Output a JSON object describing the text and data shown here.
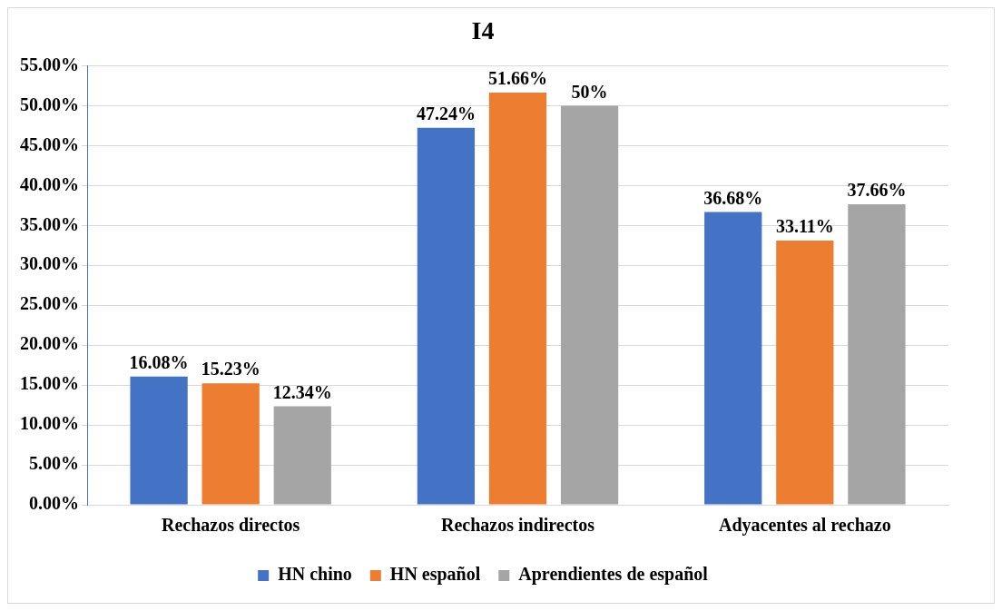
{
  "chart_data": {
    "type": "bar",
    "title": "I4",
    "categories": [
      "Rechazos directos",
      "Rechazos indirectos",
      "Adyacentes al rechazo"
    ],
    "series": [
      {
        "name": "HN chino",
        "color": "#4472c4",
        "values": [
          16.08,
          47.24,
          36.68
        ],
        "value_labels": [
          "16.08%",
          "47.24%",
          "36.68%"
        ]
      },
      {
        "name": "HN español",
        "color": "#ed7d31",
        "values": [
          15.23,
          51.66,
          33.11
        ],
        "value_labels": [
          "15.23%",
          "51.66%",
          "33.11%"
        ]
      },
      {
        "name": "Aprendientes de español",
        "color": "#a5a5a5",
        "values": [
          12.34,
          50,
          37.66
        ],
        "value_labels": [
          "12.34%",
          "50%",
          "37.66%"
        ]
      }
    ],
    "ylim": [
      0,
      55
    ],
    "yticks": [
      {
        "value": 0,
        "label": "0.00%"
      },
      {
        "value": 5,
        "label": "5.00%"
      },
      {
        "value": 10,
        "label": "10.00%"
      },
      {
        "value": 15,
        "label": "15.00%"
      },
      {
        "value": 20,
        "label": "20.00%"
      },
      {
        "value": 25,
        "label": "25.00%"
      },
      {
        "value": 30,
        "label": "30.00%"
      },
      {
        "value": 35,
        "label": "35.00%"
      },
      {
        "value": 40,
        "label": "40.00%"
      },
      {
        "value": 45,
        "label": "45.00%"
      },
      {
        "value": 50,
        "label": "50.00%"
      },
      {
        "value": 55,
        "label": "55.00%"
      }
    ],
    "grid": "y",
    "legend": "bottom"
  }
}
